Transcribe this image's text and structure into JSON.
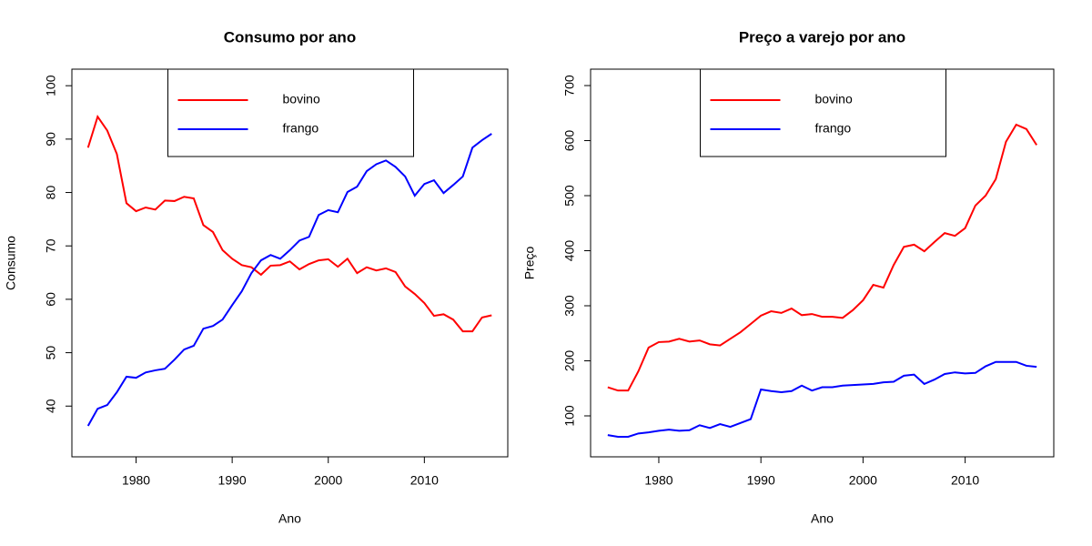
{
  "chart_data": [
    {
      "type": "line",
      "title": "Consumo por ano",
      "x_label": "Ano",
      "y_label": "Consumo",
      "x": [
        1975,
        1976,
        1977,
        1978,
        1979,
        1980,
        1981,
        1982,
        1983,
        1984,
        1985,
        1986,
        1987,
        1988,
        1989,
        1990,
        1991,
        1992,
        1993,
        1994,
        1995,
        1996,
        1997,
        1998,
        1999,
        2000,
        2001,
        2002,
        2003,
        2004,
        2005,
        2006,
        2007,
        2008,
        2009,
        2010,
        2011,
        2012,
        2013,
        2014,
        2015,
        2016,
        2017
      ],
      "series": [
        {
          "name": "bovino",
          "color": "#ff0000",
          "values": [
            88.4,
            94.2,
            91.6,
            87.2,
            78.0,
            76.5,
            77.2,
            76.8,
            78.5,
            78.4,
            79.2,
            78.9,
            73.9,
            72.6,
            69.2,
            67.6,
            66.4,
            66.0,
            64.6,
            66.3,
            66.4,
            67.1,
            65.6,
            66.6,
            67.3,
            67.5,
            66.1,
            67.6,
            64.9,
            66.0,
            65.4,
            65.8,
            65.1,
            62.4,
            61.0,
            59.3,
            56.9,
            57.2,
            56.2,
            54.0,
            54.0,
            56.6,
            57.0
          ]
        },
        {
          "name": "frango",
          "color": "#0000ff",
          "values": [
            36.3,
            39.5,
            40.2,
            42.6,
            45.5,
            45.3,
            46.3,
            46.7,
            47.0,
            48.7,
            50.6,
            51.3,
            54.5,
            55.0,
            56.2,
            58.9,
            61.5,
            64.9,
            67.3,
            68.3,
            67.6,
            69.2,
            71.0,
            71.7,
            75.8,
            76.7,
            76.3,
            80.1,
            81.1,
            84.0,
            85.3,
            86.0,
            84.8,
            83.0,
            79.4,
            81.6,
            82.3,
            79.9,
            81.4,
            83.0,
            88.4,
            89.8,
            91.0
          ]
        }
      ],
      "xlim": [
        1973.32,
        2018.68
      ],
      "xticks": [
        1980,
        1990,
        2000,
        2010
      ],
      "ylim": [
        30.5,
        103.1
      ],
      "yticks": [
        40,
        50,
        60,
        70,
        80,
        90,
        100
      ],
      "legend": "top"
    },
    {
      "type": "line",
      "title": "Preço a varejo por ano",
      "x_label": "Ano",
      "y_label": "Preço",
      "x": [
        1975,
        1976,
        1977,
        1978,
        1979,
        1980,
        1981,
        1982,
        1983,
        1984,
        1985,
        1986,
        1987,
        1988,
        1989,
        1990,
        1991,
        1992,
        1993,
        1994,
        1995,
        1996,
        1997,
        1998,
        1999,
        2000,
        2001,
        2002,
        2003,
        2004,
        2005,
        2006,
        2007,
        2008,
        2009,
        2010,
        2011,
        2012,
        2013,
        2014,
        2015,
        2016,
        2017
      ],
      "series": [
        {
          "name": "bovino",
          "color": "#ff0000",
          "values": [
            152,
            146,
            146,
            181,
            224,
            234,
            235,
            240,
            235,
            237,
            230,
            228,
            240,
            252,
            267,
            282,
            290,
            287,
            295,
            283,
            285,
            280,
            280,
            278,
            292,
            310,
            338,
            333,
            374,
            407,
            411,
            399,
            416,
            432,
            427,
            441,
            482,
            500,
            530,
            598,
            629,
            621,
            592
          ]
        },
        {
          "name": "frango",
          "color": "#0000ff",
          "values": [
            65,
            62,
            62,
            68,
            70,
            73,
            75,
            73,
            74,
            83,
            78,
            85,
            80,
            87,
            94,
            148,
            145,
            143,
            145,
            155,
            146,
            152,
            152,
            155,
            156,
            157,
            158,
            161,
            162,
            173,
            175,
            158,
            166,
            176,
            179,
            177,
            178,
            190,
            198,
            198,
            198,
            191,
            189
          ]
        }
      ],
      "xlim": [
        1973.32,
        2018.68
      ],
      "xticks": [
        1980,
        1990,
        2000,
        2010
      ],
      "ylim": [
        25.6,
        729.8
      ],
      "yticks": [
        100,
        200,
        300,
        400,
        500,
        600,
        700
      ],
      "legend": "top"
    }
  ]
}
